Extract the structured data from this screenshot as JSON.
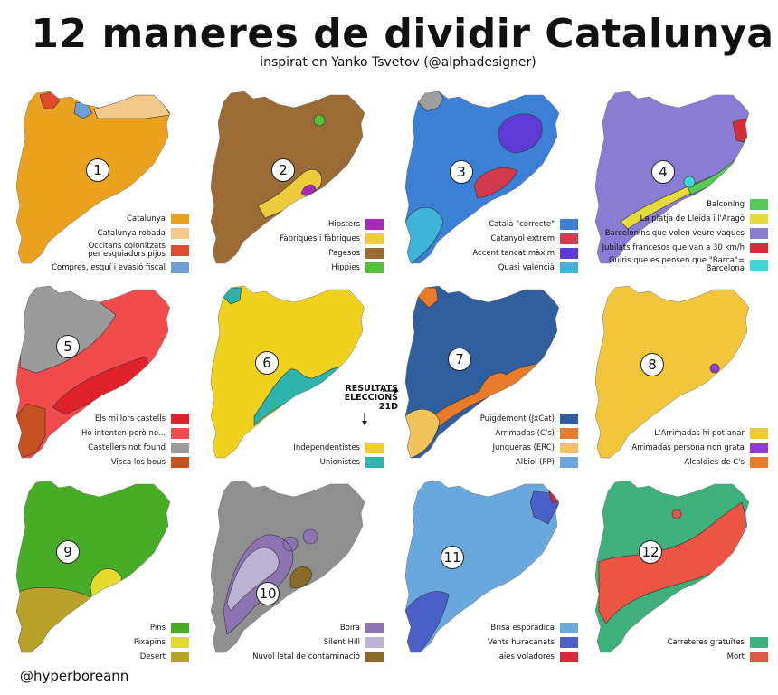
{
  "header": {
    "title": "12 maneres de dividir Catalunya",
    "subtitle": "inspirat en Yanko Tsvetov (@alphadesigner)"
  },
  "footer": {
    "credit": "@hyperboreann"
  },
  "annotation": {
    "results_label": "RESULTATS\nELECCIONS\n21D"
  },
  "maps": [
    {
      "number": "1",
      "base_color": "#E9A11E",
      "regions": [
        {
          "shape": "northwest-corner",
          "color": "#E04A2C"
        },
        {
          "shape": "north-blue",
          "color": "#6A9FD8"
        },
        {
          "shape": "northeast-band",
          "color": "#F3C98A"
        }
      ],
      "legend": [
        {
          "label": "Catalunya",
          "color": "#E9A11E"
        },
        {
          "label": "Catalunya robada",
          "color": "#F3C98A"
        },
        {
          "label": "Occitans colonitzats\nper esquiadors pijos",
          "color": "#E04A2C"
        },
        {
          "label": "Compres, esquí i evasió fiscal",
          "color": "#6A9FD8"
        }
      ]
    },
    {
      "number": "2",
      "base_color": "#9B6A35",
      "regions": [
        {
          "shape": "coast-yellow",
          "color": "#EDCB3A"
        },
        {
          "shape": "small-purple",
          "color": "#A62BB8"
        },
        {
          "shape": "small-green",
          "color": "#52C234"
        }
      ],
      "legend": [
        {
          "label": "Hipsters",
          "color": "#A62BB8"
        },
        {
          "label": "Fàbriques i fàbriques",
          "color": "#EDCB3A"
        },
        {
          "label": "Pagesos",
          "color": "#9B6A35"
        },
        {
          "label": "Hippies",
          "color": "#52C234"
        }
      ]
    },
    {
      "number": "3",
      "base_color": "#3B80D4",
      "regions": [
        {
          "shape": "northwest-gray",
          "color": "#9E9E9E"
        },
        {
          "shape": "east-purple",
          "color": "#5E3AD6"
        },
        {
          "shape": "center-red",
          "color": "#D33A4E"
        },
        {
          "shape": "south-cyan",
          "color": "#3FB4DA"
        }
      ],
      "legend": [
        {
          "label": "Català \"correcte\"",
          "color": "#3B80D4"
        },
        {
          "label": "Catanyol extrem",
          "color": "#D33A4E"
        },
        {
          "label": "Accent tancat màxim",
          "color": "#5E3AD6"
        },
        {
          "label": "Quasi valencià",
          "color": "#3FB4DA"
        }
      ]
    },
    {
      "number": "4",
      "base_color": "#8A7BD4",
      "regions": [
        {
          "shape": "coast-yellow-strip",
          "color": "#E5DB3C"
        },
        {
          "shape": "coast-green-strip",
          "color": "#58C857"
        },
        {
          "shape": "northeast-red",
          "color": "#D52D3A"
        },
        {
          "shape": "barcelona-cyan",
          "color": "#3FD8D8"
        }
      ],
      "legend": [
        {
          "label": "Balconing",
          "color": "#58C857"
        },
        {
          "label": "La platja de Lleida i l'Aragó",
          "color": "#E5DB3C"
        },
        {
          "label": "Barcelonins que volen veure vaques",
          "color": "#8A7BD4"
        },
        {
          "label": "Jubilats francesos que van a 30 km/h",
          "color": "#D52D3A"
        },
        {
          "label": "Guiris que es pensen que \"Barca\"= Barcelona",
          "color": "#3FD8D8"
        }
      ]
    },
    {
      "number": "5",
      "base_color": "#F24B4B",
      "regions": [
        {
          "shape": "north-gray",
          "color": "#9B9B9B"
        },
        {
          "shape": "center-darkred",
          "color": "#E0232A"
        },
        {
          "shape": "south-brown",
          "color": "#C4511F"
        }
      ],
      "legend": [
        {
          "label": "Els millors castells",
          "color": "#E0232A"
        },
        {
          "label": "Ho intenten però no...",
          "color": "#F24B4B"
        },
        {
          "label": "Castellers not found",
          "color": "#9B9B9B"
        },
        {
          "label": "Visca los bous",
          "color": "#C4511F"
        }
      ]
    },
    {
      "number": "6",
      "base_color": "#F0D21E",
      "regions": [
        {
          "shape": "northwest-teal",
          "color": "#2EB3AA"
        },
        {
          "shape": "coast-teal",
          "color": "#2EB3AA"
        }
      ],
      "legend": [
        {
          "label": "Independentistes",
          "color": "#F0D21E"
        },
        {
          "label": "Unionistes",
          "color": "#2EB3AA"
        }
      ]
    },
    {
      "number": "7",
      "base_color": "#2F5F9E",
      "regions": [
        {
          "shape": "northwest-orange",
          "color": "#E87A2A"
        },
        {
          "shape": "coast-orange",
          "color": "#E87A2A"
        },
        {
          "shape": "south-yellow",
          "color": "#F2C35A"
        }
      ],
      "legend": [
        {
          "label": "Puigdemont (JxCat)",
          "color": "#2F5F9E"
        },
        {
          "label": "Arrimadas (C's)",
          "color": "#E87A2A"
        },
        {
          "label": "Junqueras (ERC)",
          "color": "#F2C35A"
        },
        {
          "label": "Albiol (PP)",
          "color": "#6AA6E0"
        }
      ]
    },
    {
      "number": "8",
      "base_color": "#F2C63A",
      "regions": [
        {
          "shape": "small-purple-dot",
          "color": "#8E3AD4"
        }
      ],
      "legend": [
        {
          "label": "L'Arrimadas hi pot anar",
          "color": "#F2C63A"
        },
        {
          "label": "Arrimadas persona non grata",
          "color": "#8E3AD4"
        },
        {
          "label": "Alcaldies de C's",
          "color": "#E87A2A"
        }
      ]
    },
    {
      "number": "9",
      "base_color": "#47AC26",
      "regions": [
        {
          "shape": "south-olive",
          "color": "#B9A22A"
        },
        {
          "shape": "circle-yellow",
          "color": "#E3DB2D"
        }
      ],
      "legend": [
        {
          "label": "Pins",
          "color": "#47AC26"
        },
        {
          "label": "Pixapins",
          "color": "#E3DB2D"
        },
        {
          "label": "Desert",
          "color": "#B9A22A"
        }
      ]
    },
    {
      "number": "10",
      "base_color": "#8F8F8F",
      "regions": [
        {
          "shape": "fog-band",
          "color": "#8C74B2"
        },
        {
          "shape": "silent-hill",
          "color": "#BBB2D4"
        },
        {
          "shape": "pollution",
          "color": "#8A6A2A"
        }
      ],
      "legend": [
        {
          "label": "Boira",
          "color": "#8C74B2"
        },
        {
          "label": "Silent Hill",
          "color": "#BBB2D4"
        },
        {
          "label": "Núvol letal de contaminació",
          "color": "#8A6A2A"
        }
      ]
    },
    {
      "number": "11",
      "base_color": "#69A8DC",
      "regions": [
        {
          "shape": "northeast-blue",
          "color": "#4A5FC8"
        },
        {
          "shape": "south-blue",
          "color": "#4A5FC8"
        },
        {
          "shape": "tip-red",
          "color": "#D62A3A"
        }
      ],
      "legend": [
        {
          "label": "Brisa esporàdica",
          "color": "#69A8DC"
        },
        {
          "label": "Vents huracanats",
          "color": "#4A5FC8"
        },
        {
          "label": "Iaies voladores",
          "color": "#D62A3A"
        }
      ]
    },
    {
      "number": "12",
      "base_color": "#3EB07C",
      "regions": [
        {
          "shape": "road-band",
          "color": "#EC5444"
        },
        {
          "shape": "small-red-dot",
          "color": "#EC5444"
        }
      ],
      "legend": [
        {
          "label": "Carreteres gratuïtes",
          "color": "#3EB07C"
        },
        {
          "label": "Mort",
          "color": "#EC5444"
        }
      ]
    }
  ]
}
